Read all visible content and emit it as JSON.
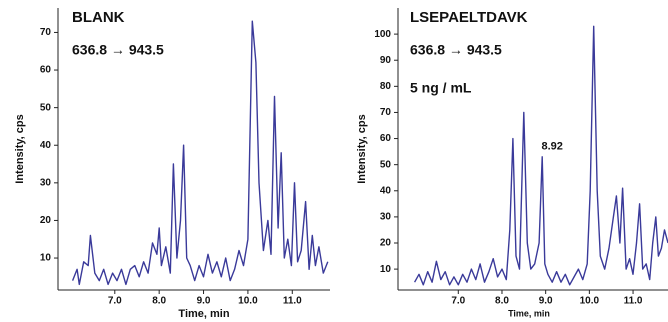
{
  "chart_data": [
    {
      "type": "line",
      "title": "BLANK",
      "subtitle": "636.8 → 943.5",
      "x_label": "Time, min",
      "y_label": "Intensity, cps",
      "xlim": [
        5.72,
        11.85
      ],
      "ylim": [
        1.5,
        76.5
      ],
      "xticks": [
        {
          "value": 7,
          "label": "7.0"
        },
        {
          "value": 8,
          "label": "8.0"
        },
        {
          "value": 9,
          "label": "9.0"
        },
        {
          "value": 10,
          "label": "10.0"
        },
        {
          "value": 11,
          "label": "11.0"
        }
      ],
      "yticks": [
        10,
        20,
        30,
        40,
        50,
        60,
        70
      ],
      "color": "#3a3a9a",
      "x": [
        6.05,
        6.15,
        6.2,
        6.3,
        6.4,
        6.45,
        6.55,
        6.65,
        6.75,
        6.85,
        6.95,
        7.05,
        7.15,
        7.25,
        7.35,
        7.45,
        7.55,
        7.65,
        7.75,
        7.85,
        7.95,
        8.0,
        8.05,
        8.15,
        8.25,
        8.32,
        8.4,
        8.48,
        8.55,
        8.62,
        8.7,
        8.8,
        8.9,
        9.0,
        9.1,
        9.2,
        9.3,
        9.4,
        9.5,
        9.6,
        9.7,
        9.8,
        9.9,
        10.0,
        10.1,
        10.18,
        10.25,
        10.35,
        10.45,
        10.52,
        10.6,
        10.68,
        10.75,
        10.82,
        10.9,
        10.98,
        11.05,
        11.12,
        11.2,
        11.3,
        11.38,
        11.45,
        11.52,
        11.6,
        11.7,
        11.8
      ],
      "values": [
        4,
        7,
        3,
        9,
        8,
        16,
        6,
        4,
        7,
        3,
        6,
        4,
        7,
        3,
        7,
        8,
        5,
        9,
        6,
        14,
        11,
        18,
        8,
        13,
        6,
        35,
        10,
        20,
        40,
        10,
        8,
        4,
        8,
        5,
        11,
        6,
        9,
        5,
        10,
        4,
        7,
        12,
        8,
        15,
        73,
        62,
        30,
        12,
        20,
        11,
        53,
        18,
        38,
        10,
        15,
        8,
        30,
        9,
        12,
        25,
        7,
        16,
        8,
        13,
        6,
        9
      ]
    },
    {
      "type": "line",
      "title": "LSEPAELTDAVK",
      "subtitle": "636.8 → 943.5",
      "note": "5 ng / mL",
      "x_label": "Time, min",
      "y_label": "Intensity, cps",
      "xlim": [
        5.62,
        11.8
      ],
      "ylim": [
        2,
        110
      ],
      "xticks": [
        {
          "value": 7,
          "label": "7.0"
        },
        {
          "value": 8,
          "label": "8.0"
        },
        {
          "value": 9,
          "label": "9.0"
        },
        {
          "value": 10,
          "label": "10.0"
        },
        {
          "value": 11,
          "label": "11.0"
        }
      ],
      "yticks": [
        10,
        20,
        30,
        40,
        50,
        60,
        70,
        80,
        90,
        100
      ],
      "color": "#3a3a9a",
      "annotations": [
        {
          "label": "8.92",
          "value": 8.92
        }
      ],
      "x": [
        6.0,
        6.1,
        6.2,
        6.3,
        6.4,
        6.5,
        6.6,
        6.7,
        6.8,
        6.9,
        7.0,
        7.1,
        7.2,
        7.3,
        7.4,
        7.5,
        7.6,
        7.7,
        7.8,
        7.9,
        8.0,
        8.1,
        8.18,
        8.25,
        8.32,
        8.4,
        8.5,
        8.58,
        8.66,
        8.75,
        8.85,
        8.92,
        8.98,
        9.05,
        9.15,
        9.25,
        9.35,
        9.45,
        9.55,
        9.65,
        9.75,
        9.85,
        9.95,
        10.02,
        10.1,
        10.18,
        10.25,
        10.35,
        10.45,
        10.55,
        10.62,
        10.7,
        10.76,
        10.84,
        10.92,
        11.0,
        11.08,
        11.15,
        11.22,
        11.3,
        11.38,
        11.45,
        11.52,
        11.58,
        11.65,
        11.72,
        11.8
      ],
      "values": [
        5,
        8,
        4,
        9,
        5,
        13,
        6,
        9,
        4,
        7,
        4,
        8,
        5,
        10,
        6,
        12,
        5,
        9,
        14,
        7,
        10,
        6,
        25,
        60,
        15,
        10,
        70,
        20,
        10,
        12,
        20,
        53,
        12,
        8,
        5,
        9,
        5,
        8,
        4,
        7,
        10,
        6,
        12,
        40,
        103,
        40,
        15,
        10,
        18,
        30,
        38,
        20,
        41,
        10,
        14,
        8,
        20,
        35,
        10,
        12,
        6,
        20,
        30,
        15,
        18,
        25,
        20
      ]
    }
  ]
}
